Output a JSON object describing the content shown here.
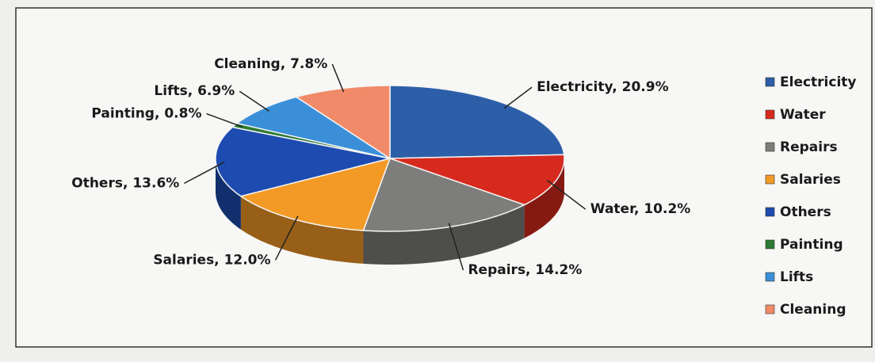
{
  "chart_data": {
    "type": "pie3d",
    "categories": [
      "Electricity",
      "Water",
      "Repairs",
      "Salaries",
      "Others",
      "Painting",
      "Lifts",
      "Cleaning"
    ],
    "values": [
      20.9,
      10.2,
      14.2,
      12.0,
      13.6,
      0.8,
      6.9,
      7.8
    ],
    "value_labels": [
      "Electricity, 20.9%",
      "Water, 10.2%",
      "Repairs, 14.2%",
      "Salaries, 12.0%",
      "Others, 13.6%",
      "Painting, 0.8%",
      "Lifts, 6.9%",
      "Cleaning, 7.8%"
    ],
    "colors": [
      "#2d5ea8",
      "#d62a1f",
      "#7d7d7b",
      "#f39a26",
      "#1d4bb0",
      "#2c7a34",
      "#3a8fd8",
      "#f08a68"
    ],
    "legend": "right"
  }
}
